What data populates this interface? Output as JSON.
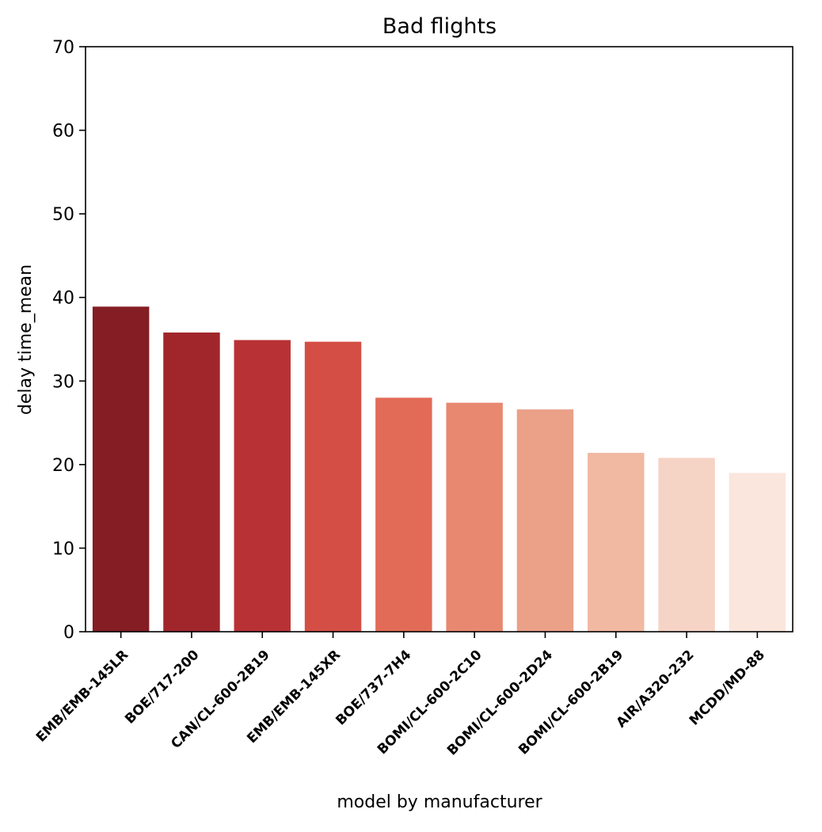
{
  "chart_data": {
    "type": "bar",
    "title": "Bad flights",
    "xlabel": "model by manufacturer",
    "ylabel": "delay time_mean",
    "ylim": [
      0,
      70
    ],
    "yticks": [
      0,
      10,
      20,
      30,
      40,
      50,
      60,
      70
    ],
    "grid": false,
    "categories": [
      "EMB/EMB-145LR",
      "BOE/717-200",
      "CAN/CL-600-2B19",
      "EMB/EMB-145XR",
      "BOE/737-7H4",
      "BOMI/CL-600-2C10",
      "BOMI/CL-600-2D24",
      "BOMI/CL-600-2B19",
      "AIR/A320-232",
      "MCDD/MD-88"
    ],
    "values": [
      38.9,
      35.8,
      34.9,
      34.7,
      28.0,
      27.4,
      26.6,
      21.4,
      20.8,
      19.0
    ],
    "colors": [
      "#841d24",
      "#a0262b",
      "#b83235",
      "#d44e45",
      "#e26b57",
      "#e88870",
      "#eba088",
      "#f1b8a2",
      "#f5d3c5",
      "#fae6dd"
    ]
  }
}
